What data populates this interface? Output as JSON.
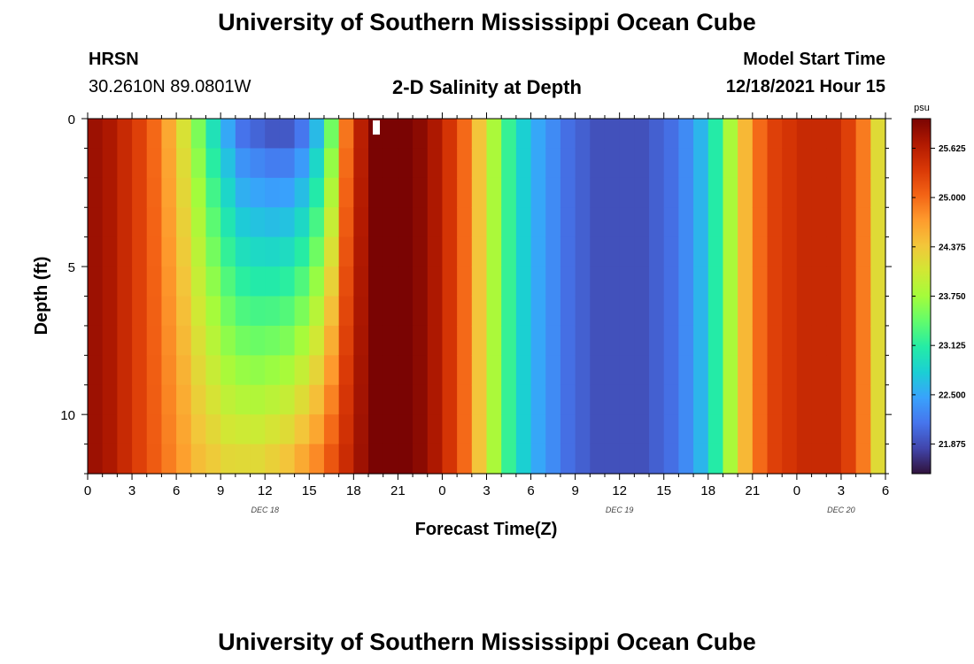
{
  "header": {
    "title": "University of Southern Mississippi Ocean Cube",
    "station": "HRSN",
    "coords": "30.2610N  89.0801W",
    "subtitle": "2-D Salinity at Depth",
    "model_label": "Model Start Time",
    "model_time": "12/18/2021 Hour 15"
  },
  "footer": {
    "title": "University of Southern Mississippi Ocean Cube"
  },
  "colors": {
    "colormap": [
      "#30123b",
      "#4145ab",
      "#4675ed",
      "#39a2fc",
      "#1bcfd4",
      "#24eca6",
      "#61fc6c",
      "#a4fc3b",
      "#d1e834",
      "#f3c63a",
      "#fe9b2d",
      "#f36315",
      "#d93806",
      "#b11901",
      "#7a0403"
    ]
  },
  "chart_data": {
    "type": "heatmap",
    "xlabel": "Forecast Time(Z)",
    "ylabel": "Depth (ft)",
    "x_tick_labels": [
      "0",
      "3",
      "6",
      "9",
      "12",
      "15",
      "18",
      "21",
      "0",
      "3",
      "6",
      "9",
      "12",
      "15",
      "18",
      "21",
      "0",
      "3",
      "6"
    ],
    "x_range_hours": [
      0,
      54
    ],
    "y_ticks": [
      0,
      5,
      10
    ],
    "y_range": [
      0,
      12
    ],
    "y_reversed": true,
    "day_labels": [
      {
        "label": "DEC 18",
        "hour": 12
      },
      {
        "label": "DEC 19",
        "hour": 36
      },
      {
        "label": "DEC 20",
        "hour": 51
      }
    ],
    "colorbar": {
      "unit": "psu",
      "min": 21.5,
      "max": 26.0,
      "ticks": [
        "21.875",
        "22.500",
        "23.125",
        "23.750",
        "24.375",
        "25.000",
        "25.625"
      ]
    },
    "surface_salinity_by_hour": [
      25.8,
      25.7,
      25.5,
      25.3,
      25.0,
      24.6,
      24.1,
      23.5,
      22.9,
      22.4,
      22.0,
      21.9,
      21.8,
      21.8,
      22.0,
      22.5,
      23.4,
      24.9,
      25.6,
      26.0,
      26.1,
      26.1,
      25.9,
      25.7,
      25.4,
      25.0,
      24.4,
      23.8,
      23.2,
      22.8,
      22.5,
      22.3,
      22.1,
      22.0,
      21.9,
      21.9,
      21.9,
      21.9,
      22.0,
      22.1,
      22.3,
      22.6,
      23.1,
      23.8,
      24.5,
      25.0,
      25.3,
      25.4,
      25.5,
      25.5,
      25.5,
      25.3,
      24.9,
      24.2,
      23.6
    ],
    "bottom_salinity_by_hour": [
      25.8,
      25.7,
      25.5,
      25.3,
      25.1,
      24.9,
      24.7,
      24.5,
      24.4,
      24.3,
      24.3,
      24.3,
      24.4,
      24.5,
      24.7,
      24.9,
      25.2,
      25.5,
      25.8,
      26.0,
      26.1,
      26.1,
      25.9,
      25.7,
      25.4,
      25.0,
      24.4,
      23.8,
      23.2,
      22.8,
      22.5,
      22.3,
      22.1,
      22.0,
      21.9,
      21.9,
      21.9,
      21.9,
      22.0,
      22.1,
      22.3,
      22.6,
      23.1,
      23.8,
      24.5,
      25.0,
      25.3,
      25.4,
      25.5,
      25.5,
      25.5,
      25.3,
      24.9,
      24.2,
      23.6
    ]
  }
}
